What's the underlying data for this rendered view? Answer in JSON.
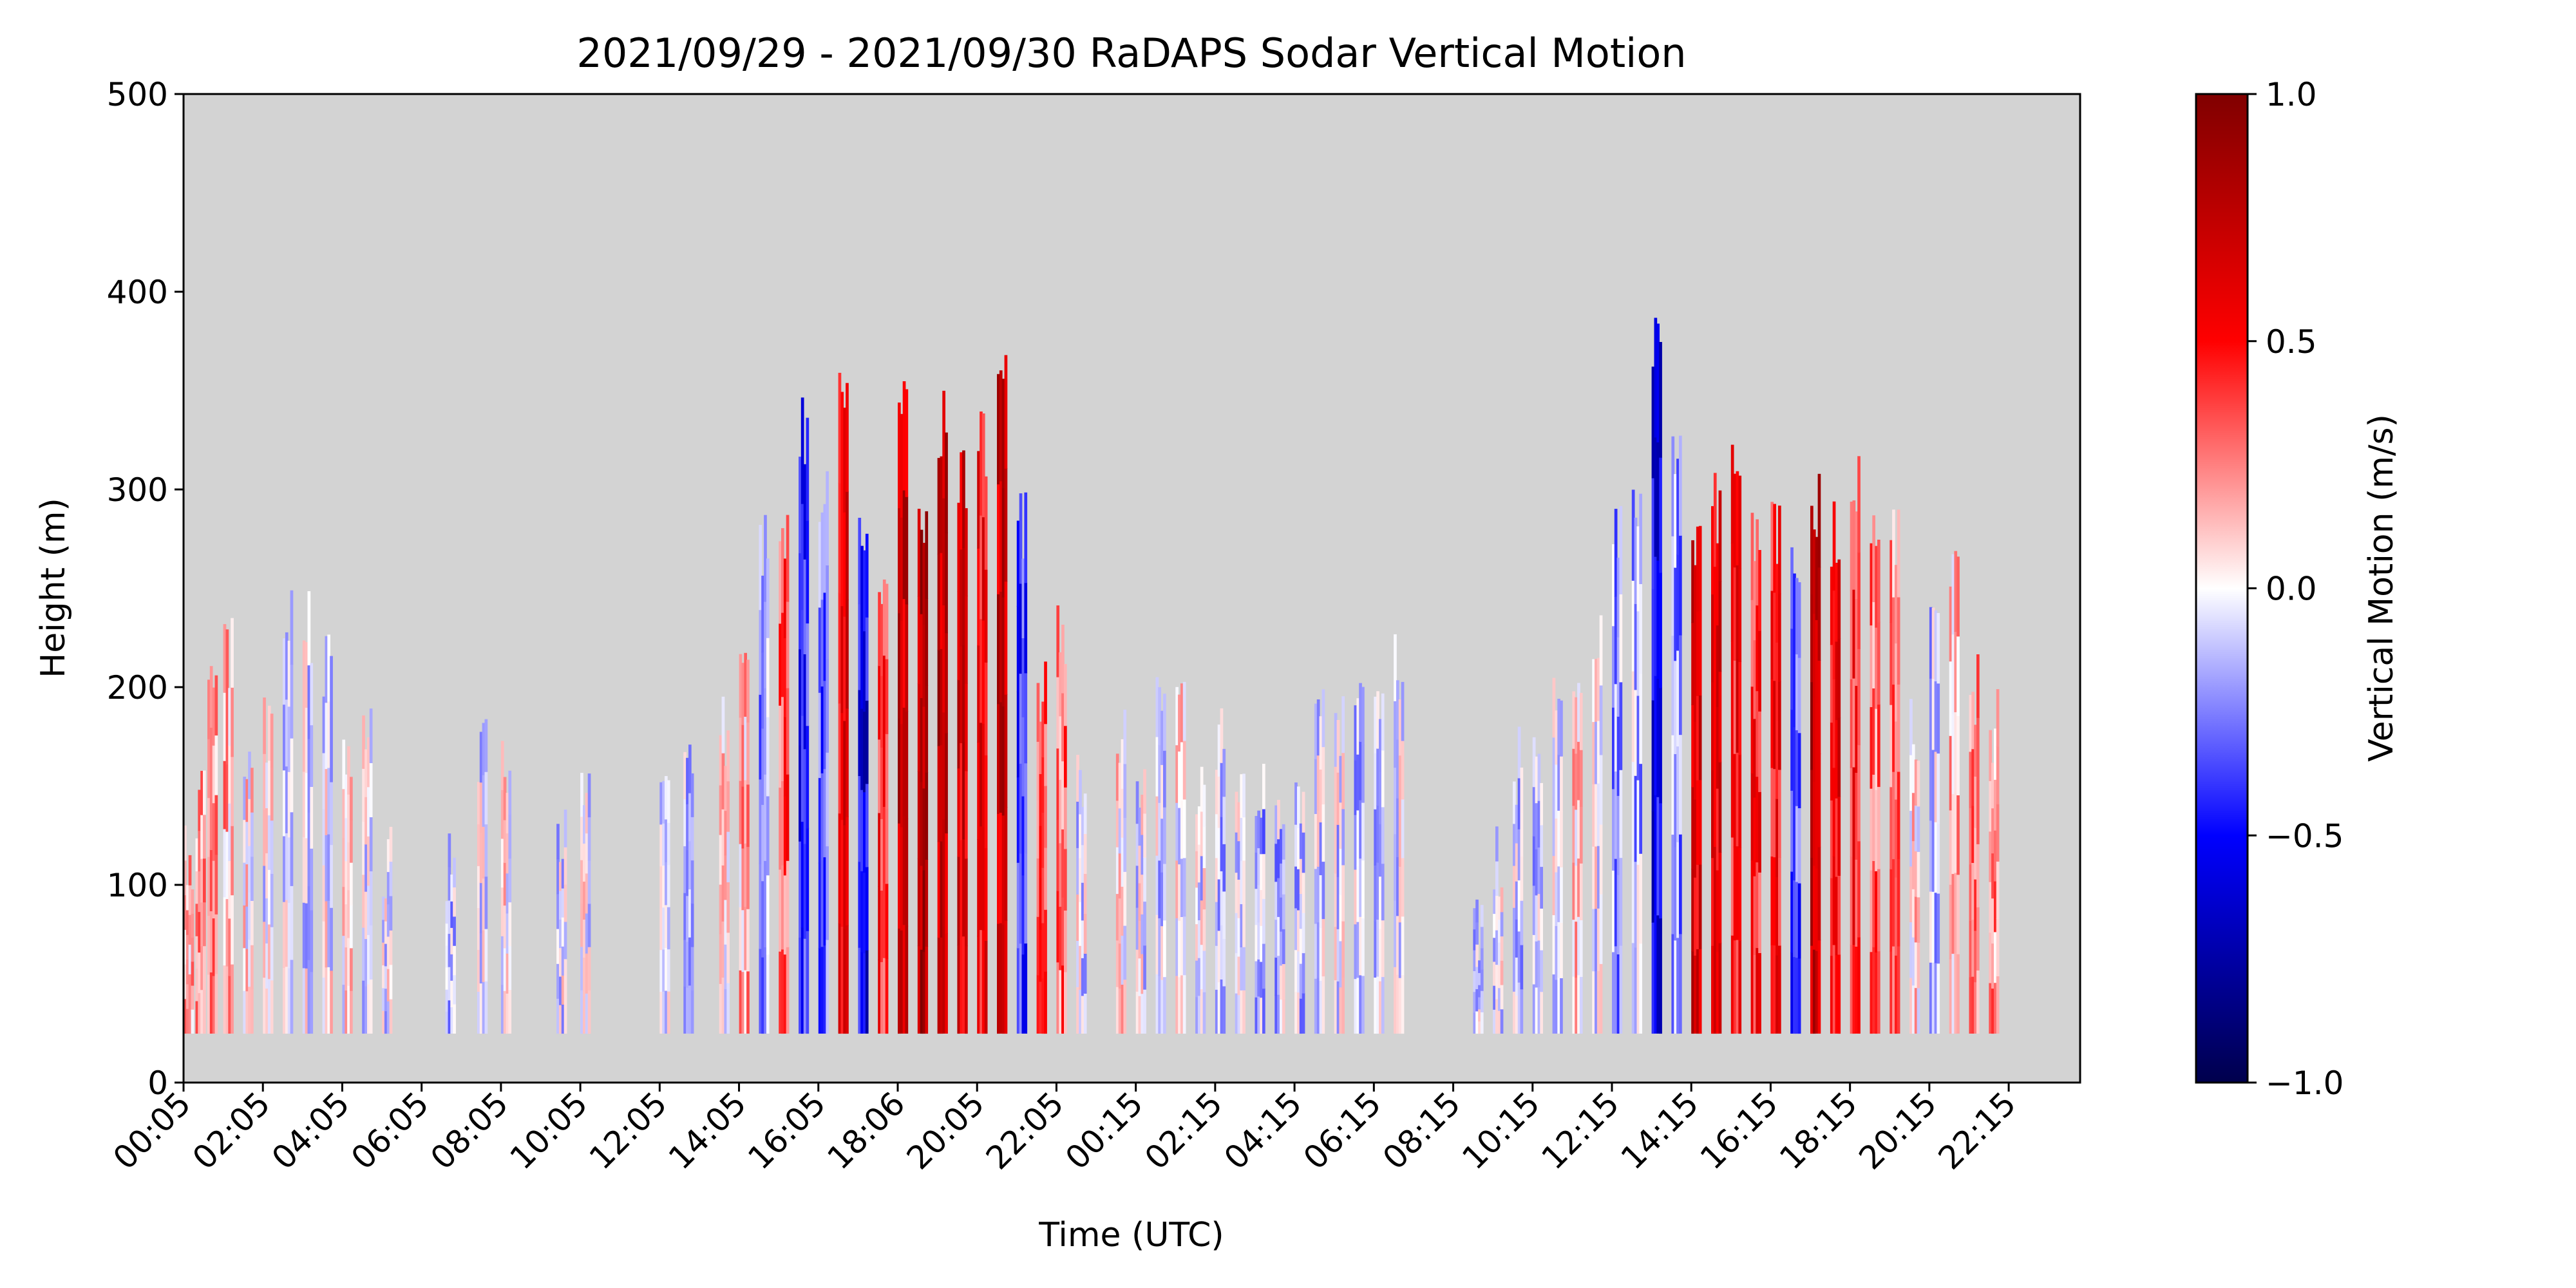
{
  "chart_data": {
    "type": "heatmap",
    "title": "2021/09/29 - 2021/09/30 RaDAPS Sodar Vertical Motion",
    "xlabel": "Time (UTC)",
    "ylabel": "Height (m)",
    "x_tick_labels": [
      "00:05",
      "02:05",
      "04:05",
      "06:05",
      "08:05",
      "10:05",
      "12:05",
      "14:05",
      "16:05",
      "18:06",
      "20:05",
      "22:05",
      "00:15",
      "02:15",
      "04:15",
      "06:15",
      "08:15",
      "10:15",
      "12:15",
      "14:15",
      "16:15",
      "18:15",
      "20:15",
      "22:15"
    ],
    "y_ticks": [
      0,
      100,
      200,
      300,
      400,
      500
    ],
    "ylim": [
      0,
      500
    ],
    "x_range_hours": [
      0,
      47.8
    ],
    "background_color": "#d3d3d3",
    "colorbar": {
      "label": "Vertical Motion (m/s)",
      "colormap": "seismic",
      "vmin": -1.0,
      "vmax": 1.0,
      "tick_labels": [
        "1.0",
        "0.5",
        "0.0",
        "−0.5",
        "−1.0"
      ],
      "tick_values": [
        1.0,
        0.5,
        0.0,
        -0.5,
        -1.0
      ]
    },
    "data_floor_m": 25,
    "column_width_hours": 0.25,
    "echo_top_profile": [
      {
        "t": 0.0,
        "top": 130,
        "mean_w": 0.15
      },
      {
        "t": 0.3,
        "top": 160,
        "mean_w": 0.18
      },
      {
        "t": 0.6,
        "top": 220,
        "mean_w": 0.2
      },
      {
        "t": 1.0,
        "top": 235,
        "mean_w": 0.15
      },
      {
        "t": 1.5,
        "top": 190,
        "mean_w": 0.05
      },
      {
        "t": 2.0,
        "top": 200,
        "mean_w": -0.02
      },
      {
        "t": 2.5,
        "top": 250,
        "mean_w": -0.08
      },
      {
        "t": 3.0,
        "top": 250,
        "mean_w": -0.05
      },
      {
        "t": 3.5,
        "top": 235,
        "mean_w": -0.03
      },
      {
        "t": 4.0,
        "top": 190,
        "mean_w": 0.02
      },
      {
        "t": 4.5,
        "top": 200,
        "mean_w": -0.05
      },
      {
        "t": 5.0,
        "top": 130,
        "mean_w": -0.03
      },
      {
        "t": 6.6,
        "top": 130,
        "mean_w": -0.12
      },
      {
        "t": 7.4,
        "top": 185,
        "mean_w": -0.06
      },
      {
        "t": 8.0,
        "top": 175,
        "mean_w": 0.03
      },
      {
        "t": 9.4,
        "top": 145,
        "mean_w": -0.05
      },
      {
        "t": 10.0,
        "top": 175,
        "mean_w": -0.02
      },
      {
        "t": 12.0,
        "top": 175,
        "mean_w": -0.08
      },
      {
        "t": 12.6,
        "top": 190,
        "mean_w": -0.1
      },
      {
        "t": 13.5,
        "top": 200,
        "mean_w": 0.05
      },
      {
        "t": 14.0,
        "top": 240,
        "mean_w": 0.15
      },
      {
        "t": 14.5,
        "top": 290,
        "mean_w": -0.2
      },
      {
        "t": 15.0,
        "top": 290,
        "mean_w": 0.35
      },
      {
        "t": 15.5,
        "top": 350,
        "mean_w": -0.45
      },
      {
        "t": 16.0,
        "top": 310,
        "mean_w": -0.3
      },
      {
        "t": 16.5,
        "top": 370,
        "mean_w": 0.6
      },
      {
        "t": 17.0,
        "top": 300,
        "mean_w": -0.55
      },
      {
        "t": 17.5,
        "top": 270,
        "mean_w": 0.45
      },
      {
        "t": 18.0,
        "top": 355,
        "mean_w": 0.7
      },
      {
        "t": 18.5,
        "top": 300,
        "mean_w": 0.8
      },
      {
        "t": 19.0,
        "top": 350,
        "mean_w": 0.75
      },
      {
        "t": 19.5,
        "top": 320,
        "mean_w": 0.65
      },
      {
        "t": 20.0,
        "top": 340,
        "mean_w": 0.55
      },
      {
        "t": 20.5,
        "top": 370,
        "mean_w": 0.7
      },
      {
        "t": 21.0,
        "top": 300,
        "mean_w": -0.4
      },
      {
        "t": 21.5,
        "top": 220,
        "mean_w": 0.35
      },
      {
        "t": 22.0,
        "top": 250,
        "mean_w": 0.3
      },
      {
        "t": 22.5,
        "top": 175,
        "mean_w": -0.05
      },
      {
        "t": 23.5,
        "top": 190,
        "mean_w": 0.05
      },
      {
        "t": 24.0,
        "top": 175,
        "mean_w": -0.05
      },
      {
        "t": 24.5,
        "top": 220,
        "mean_w": -0.08
      },
      {
        "t": 25.0,
        "top": 220,
        "mean_w": 0.03
      },
      {
        "t": 25.5,
        "top": 175,
        "mean_w": -0.06
      },
      {
        "t": 26.0,
        "top": 190,
        "mean_w": -0.1
      },
      {
        "t": 26.5,
        "top": 160,
        "mean_w": -0.08
      },
      {
        "t": 27.0,
        "top": 170,
        "mean_w": -0.15
      },
      {
        "t": 27.5,
        "top": 160,
        "mean_w": -0.12
      },
      {
        "t": 28.0,
        "top": 160,
        "mean_w": -0.1
      },
      {
        "t": 28.5,
        "top": 210,
        "mean_w": -0.08
      },
      {
        "t": 29.0,
        "top": 200,
        "mean_w": -0.06
      },
      {
        "t": 29.5,
        "top": 210,
        "mean_w": -0.1
      },
      {
        "t": 30.0,
        "top": 205,
        "mean_w": -0.08
      },
      {
        "t": 30.5,
        "top": 230,
        "mean_w": -0.05
      },
      {
        "t": 31.0,
        "top": 25,
        "mean_w": 0.0
      },
      {
        "t": 32.5,
        "top": 100,
        "mean_w": -0.1
      },
      {
        "t": 33.0,
        "top": 130,
        "mean_w": -0.05
      },
      {
        "t": 33.5,
        "top": 180,
        "mean_w": -0.1
      },
      {
        "t": 34.0,
        "top": 190,
        "mean_w": -0.12
      },
      {
        "t": 34.5,
        "top": 220,
        "mean_w": -0.08
      },
      {
        "t": 35.0,
        "top": 220,
        "mean_w": 0.1
      },
      {
        "t": 35.5,
        "top": 250,
        "mean_w": -0.05
      },
      {
        "t": 36.0,
        "top": 300,
        "mean_w": -0.2
      },
      {
        "t": 36.5,
        "top": 310,
        "mean_w": -0.15
      },
      {
        "t": 37.0,
        "top": 400,
        "mean_w": -0.55
      },
      {
        "t": 37.5,
        "top": 340,
        "mean_w": -0.2
      },
      {
        "t": 38.0,
        "top": 300,
        "mean_w": 0.65
      },
      {
        "t": 38.5,
        "top": 310,
        "mean_w": 0.55
      },
      {
        "t": 39.0,
        "top": 340,
        "mean_w": 0.5
      },
      {
        "t": 39.5,
        "top": 300,
        "mean_w": 0.45
      },
      {
        "t": 40.0,
        "top": 300,
        "mean_w": 0.5
      },
      {
        "t": 40.5,
        "top": 290,
        "mean_w": -0.35
      },
      {
        "t": 41.0,
        "top": 310,
        "mean_w": 0.75
      },
      {
        "t": 41.5,
        "top": 300,
        "mean_w": 0.55
      },
      {
        "t": 42.0,
        "top": 320,
        "mean_w": 0.45
      },
      {
        "t": 42.5,
        "top": 295,
        "mean_w": 0.3
      },
      {
        "t": 43.0,
        "top": 295,
        "mean_w": 0.25
      },
      {
        "t": 43.5,
        "top": 200,
        "mean_w": 0.05
      },
      {
        "t": 44.0,
        "top": 250,
        "mean_w": -0.1
      },
      {
        "t": 44.5,
        "top": 280,
        "mean_w": 0.15
      },
      {
        "t": 45.0,
        "top": 220,
        "mean_w": 0.3
      },
      {
        "t": 45.5,
        "top": 200,
        "mean_w": 0.2
      }
    ]
  }
}
